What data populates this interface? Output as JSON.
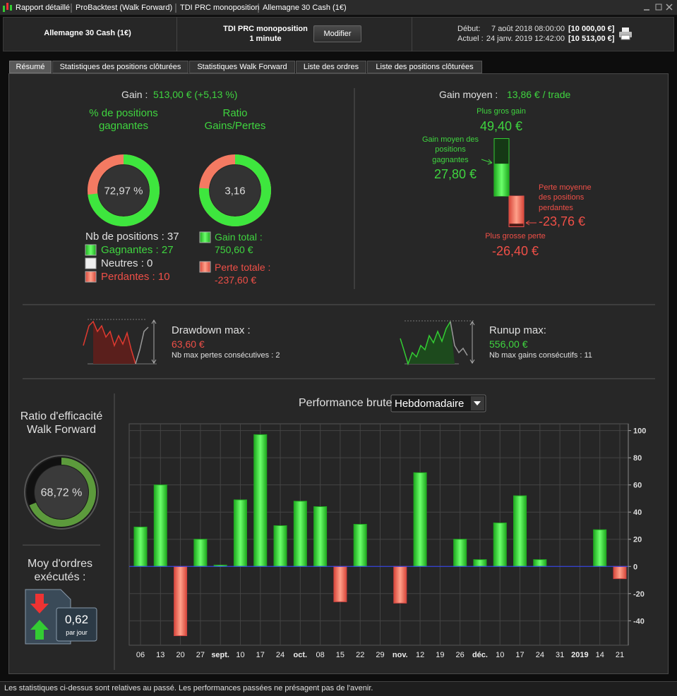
{
  "window": {
    "tabs": [
      "Rapport détaillé",
      "ProBacktest (Walk Forward)",
      "TDI PRC monoposition",
      "Allemagne 30 Cash (1€)"
    ]
  },
  "header": {
    "instrument": "Allemagne 30 Cash (1€)",
    "strategy": "TDI PRC monoposition",
    "timeframe": "1 minute",
    "button": "Modifier",
    "start_label": "Début:",
    "start_date": "7 août 2018 08:00:00",
    "start_capital": "[10 000,00 €]",
    "current_label": "Actuel :",
    "current_date": "24 janv. 2019 12:42:00",
    "current_capital": "[10 513,00 €]"
  },
  "tabs": [
    "Résumé",
    "Statistiques des positions clôturées",
    "Statistiques Walk Forward",
    "Liste des ordres",
    "Liste des positions clôturées"
  ],
  "summary": {
    "gain_label": "Gain :",
    "gain_value": "513,00 € (+5,13 %)",
    "win_rate_title": "% de positions gagnantes",
    "win_rate": {
      "value": 72.97,
      "label": "72,97 %"
    },
    "ratio_title": "Ratio Gains/Pertes",
    "ratio": {
      "value": 3.16,
      "label": "3,16"
    },
    "positions": "Nb de positions : 37",
    "winning": "Gagnantes : 27",
    "neutral": "Neutres : 0",
    "losing": "Perdantes : 10",
    "gain_total_label": "Gain total :",
    "gain_total": "750,60 €",
    "loss_total_label": "Perte totale :",
    "loss_total": "-237,60 €"
  },
  "average": {
    "label": "Gain moyen :",
    "value": "13,86 € / trade",
    "best_title": "Plus gros gain",
    "best": {
      "value": 49.4,
      "label": "49,40 €"
    },
    "avg_win_title": "Gain moyen des positions gagnantes",
    "avg_win": {
      "value": 27.8,
      "label": "27,80 €"
    },
    "avg_loss_title": "Perte moyenne des positions perdantes",
    "avg_loss": {
      "value": -23.76,
      "label": "-23,76 €"
    },
    "worst_title": "Plus grosse perte",
    "worst": {
      "value": -26.4,
      "label": "-26,40 €"
    }
  },
  "drawdown": {
    "title": "Drawdown max :",
    "value": "63,60 €",
    "note": "Nb max pertes consécutives : 2"
  },
  "runup": {
    "title": "Runup max:",
    "value": "556,00 €",
    "note": "Nb max gains consécutifs : 11"
  },
  "walk_forward": {
    "title": "Ratio d'efficacité Walk Forward",
    "ratio": {
      "value": 68.72,
      "label": "68,72 %"
    }
  },
  "orders": {
    "title": "Moy d'ordres exécutés :",
    "value": "0,62",
    "unit": "par jour"
  },
  "chart_data": {
    "type": "bar",
    "title": "Performance brute",
    "period": "Hebdomadaire",
    "categories": [
      "06",
      "13",
      "20",
      "27",
      "sept.",
      "10",
      "17",
      "24",
      "oct.",
      "08",
      "15",
      "22",
      "29",
      "nov.",
      "12",
      "19",
      "26",
      "déc.",
      "10",
      "17",
      "24",
      "31",
      "2019",
      "14",
      "21"
    ],
    "values": [
      29,
      60,
      -51,
      20,
      1,
      49,
      97,
      30,
      48,
      44,
      -26,
      31,
      0,
      -27,
      69,
      0,
      20,
      5,
      32,
      52,
      5,
      0,
      0,
      27,
      -9
    ],
    "positive_color": "#3ee63e",
    "negative_color": "#f46a58",
    "ylim": [
      -58,
      105
    ],
    "yticks": [
      100,
      80,
      60,
      40,
      20,
      0,
      -20,
      -40
    ],
    "grid": true
  },
  "footer": "Les statistiques ci-dessus sont relatives au passé. Les performances passées ne présagent pas de l'avenir."
}
